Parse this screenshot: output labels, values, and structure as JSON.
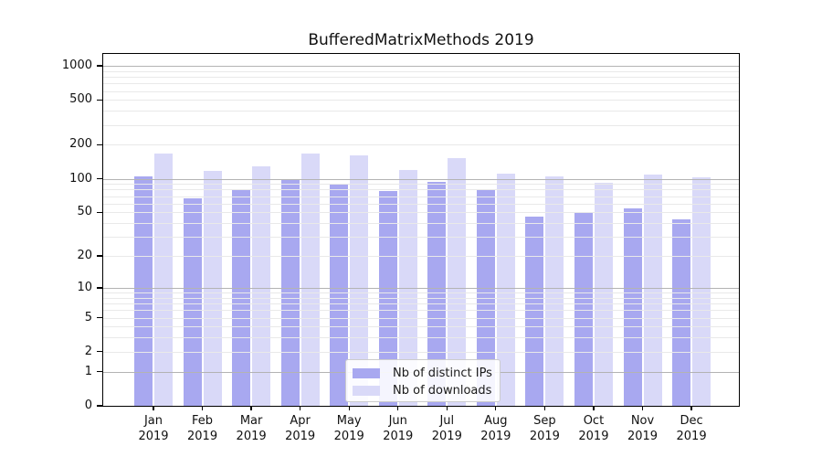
{
  "title": "BufferedMatrixMethods 2019",
  "legend": {
    "items": [
      {
        "label": "Nb of distinct IPs"
      },
      {
        "label": "Nb of downloads"
      }
    ]
  },
  "chart_data": {
    "type": "bar",
    "title": "BufferedMatrixMethods 2019",
    "categories": [
      "Jan",
      "Feb",
      "Mar",
      "Apr",
      "May",
      "Jun",
      "Jul",
      "Aug",
      "Sep",
      "Oct",
      "Nov",
      "Dec"
    ],
    "year": "2019",
    "series": [
      {
        "name": "Nb of distinct IPs",
        "color": "#a8a8f0",
        "values": [
          105,
          67,
          80,
          99,
          90,
          77,
          94,
          79,
          46,
          50,
          54,
          43
        ]
      },
      {
        "name": "Nb of downloads",
        "color": "#d9d9f8",
        "values": [
          166,
          118,
          129,
          166,
          161,
          119,
          152,
          111,
          104,
          92,
          108,
          102
        ]
      }
    ],
    "xlabel": "",
    "ylabel": "",
    "y_scale": "log10(value+1)",
    "ylim": [
      0,
      1270
    ],
    "y_ticks": [
      0,
      1,
      2,
      5,
      10,
      20,
      50,
      100,
      200,
      500,
      1000
    ],
    "y_major_gridlines": [
      1,
      10,
      100,
      1000
    ],
    "y_minor_gridlines": [
      2,
      3,
      4,
      5,
      6,
      7,
      8,
      9,
      20,
      30,
      40,
      50,
      60,
      70,
      80,
      90,
      200,
      300,
      400,
      500,
      600,
      700,
      800,
      900
    ],
    "grid": "on",
    "grid_above_bars": true,
    "legend_position": "lower center",
    "colors": {
      "grid_major": "#b3b3b3",
      "grid_minor": "#e9e9e9",
      "spine": "#000000",
      "background": "#ffffff"
    }
  }
}
